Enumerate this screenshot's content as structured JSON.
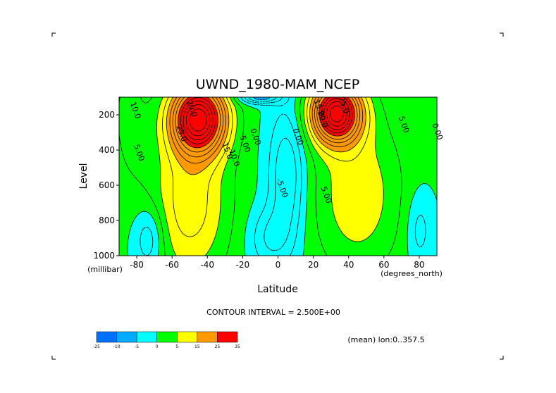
{
  "chart_data": {
    "type": "contour",
    "title": "UWND_1980-MAM_NCEP",
    "xlabel": "Latitude",
    "xunits": "(degrees_north)",
    "ylabel": "Level",
    "yunits": "(millibar)",
    "xlim": [
      -90,
      90
    ],
    "ylim": [
      1000,
      100
    ],
    "xticks": [
      -80,
      -60,
      -40,
      -20,
      0,
      20,
      40,
      60,
      80
    ],
    "yticks": [
      200,
      400,
      600,
      800,
      1000
    ],
    "contour_interval_text": "CONTOUR INTERVAL = 2.500E+00",
    "subtitle": "(mean) lon:0..357.5",
    "contour_labels": [
      {
        "text": "10.0",
        "x": -82,
        "y": 180
      },
      {
        "text": "20.0",
        "x": -50,
        "y": 170
      },
      {
        "text": "25.0",
        "x": -56,
        "y": 310
      },
      {
        "text": "15.0",
        "x": -30,
        "y": 410
      },
      {
        "text": "10.0",
        "x": -26,
        "y": 450
      },
      {
        "text": "5.00",
        "x": -20,
        "y": 370
      },
      {
        "text": "0.00",
        "x": -14,
        "y": 330
      },
      {
        "text": "5.00",
        "x": -80,
        "y": 420
      },
      {
        "text": "-5.00",
        "x": 1,
        "y": 620
      },
      {
        "text": "0.00",
        "x": 10,
        "y": 330
      },
      {
        "text": "15.0",
        "x": 22,
        "y": 165
      },
      {
        "text": "25.0",
        "x": 36,
        "y": 150
      },
      {
        "text": "20.0",
        "x": 24,
        "y": 230
      },
      {
        "text": "5.00",
        "x": 70,
        "y": 260
      },
      {
        "text": "5.00",
        "x": 26,
        "y": 660
      },
      {
        "text": "0.00",
        "x": 89,
        "y": 300
      }
    ],
    "colorbar": {
      "labels": [
        "-25",
        "-10",
        "-5",
        "0",
        "5",
        "15",
        "25",
        "35"
      ],
      "colors": [
        "#0070ff",
        "#00aaff",
        "#00ffff",
        "#00ff00",
        "#ffff00",
        "#ff9900",
        "#ff0000"
      ]
    },
    "fill_colors": {
      "lt0": "#00ffff",
      "lt_neg10": "#00aaff",
      "lt_neg20": "#0070ff",
      "c0_5": "#00ff00",
      "c5_10": "#ffff00",
      "c10_20": "#ff9900",
      "ge20": "#ff0000"
    }
  }
}
